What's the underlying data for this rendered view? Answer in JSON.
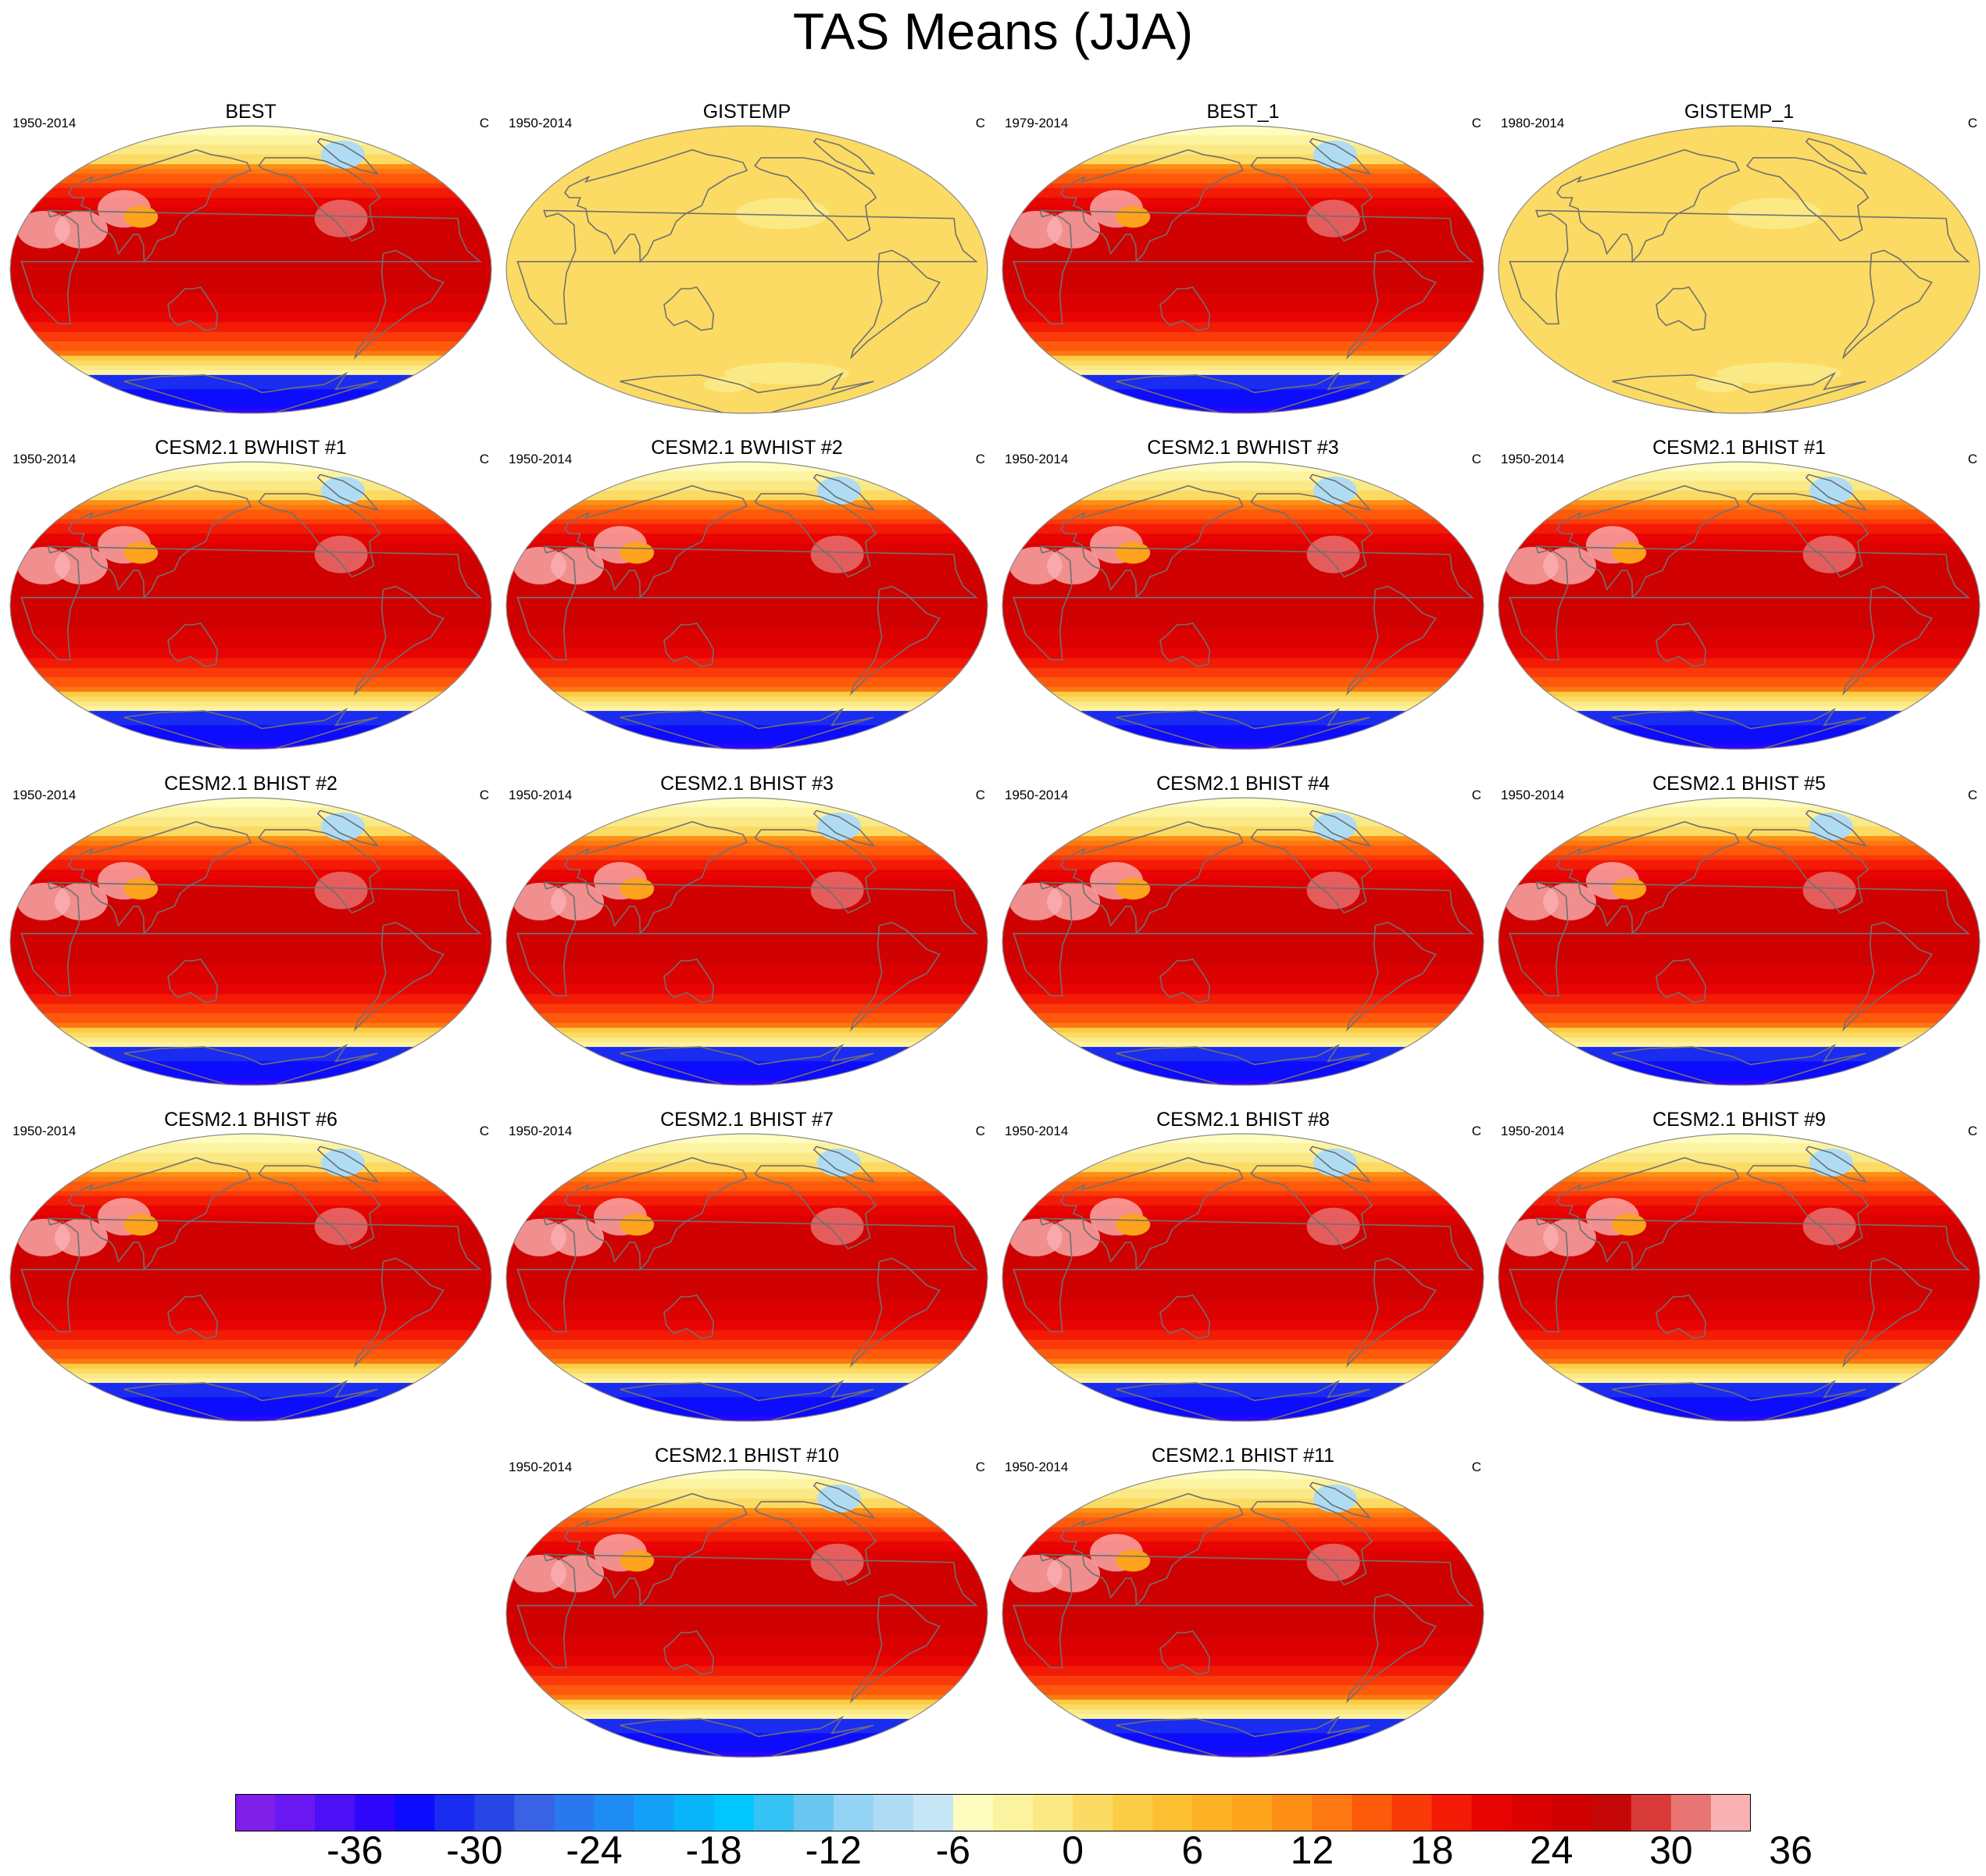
{
  "title": "TAS Means (JJA)",
  "units": "C",
  "chart_data": {
    "type": "map-panels",
    "variable": "TAS",
    "season": "JJA",
    "units": "C",
    "panels": [
      {
        "title": "BEST",
        "years": "1950-2014",
        "units": "C",
        "field": "full"
      },
      {
        "title": "GISTEMP",
        "years": "1950-2014",
        "units": "C",
        "field": "anomaly-near-zero"
      },
      {
        "title": "BEST_1",
        "years": "1979-2014",
        "units": "C",
        "field": "full"
      },
      {
        "title": "GISTEMP_1",
        "years": "1980-2014",
        "units": "C",
        "field": "anomaly-near-zero"
      },
      {
        "title": "CESM2.1 BWHIST #1",
        "years": "1950-2014",
        "units": "C",
        "field": "full"
      },
      {
        "title": "CESM2.1 BWHIST #2",
        "years": "1950-2014",
        "units": "C",
        "field": "full"
      },
      {
        "title": "CESM2.1 BWHIST #3",
        "years": "1950-2014",
        "units": "C",
        "field": "full"
      },
      {
        "title": "CESM2.1 BHIST #1",
        "years": "1950-2014",
        "units": "C",
        "field": "full"
      },
      {
        "title": "CESM2.1 BHIST #2",
        "years": "1950-2014",
        "units": "C",
        "field": "full"
      },
      {
        "title": "CESM2.1 BHIST #3",
        "years": "1950-2014",
        "units": "C",
        "field": "full"
      },
      {
        "title": "CESM2.1 BHIST #4",
        "years": "1950-2014",
        "units": "C",
        "field": "full"
      },
      {
        "title": "CESM2.1 BHIST #5",
        "years": "1950-2014",
        "units": "C",
        "field": "full"
      },
      {
        "title": "CESM2.1 BHIST #6",
        "years": "1950-2014",
        "units": "C",
        "field": "full"
      },
      {
        "title": "CESM2.1 BHIST #7",
        "years": "1950-2014",
        "units": "C",
        "field": "full"
      },
      {
        "title": "CESM2.1 BHIST #8",
        "years": "1950-2014",
        "units": "C",
        "field": "full"
      },
      {
        "title": "CESM2.1 BHIST #9",
        "years": "1950-2014",
        "units": "C",
        "field": "full"
      },
      {
        "title": "CESM2.1 BHIST #10",
        "years": "1950-2014",
        "units": "C",
        "field": "full"
      },
      {
        "title": "CESM2.1 BHIST #11",
        "years": "1950-2014",
        "units": "C",
        "field": "full"
      }
    ],
    "colorbar": {
      "min": -42,
      "max": 42,
      "interval": 2,
      "tick_labels": [
        "-36",
        "-30",
        "-24",
        "-18",
        "-12",
        "-6",
        "0",
        "6",
        "12",
        "18",
        "24",
        "30",
        "36"
      ],
      "colors": [
        "#7f1fe8",
        "#6a18f2",
        "#4d0ff6",
        "#2e06fb",
        "#0d0cff",
        "#1a2cf0",
        "#2846e6",
        "#3962e4",
        "#2a78ee",
        "#1e8cf2",
        "#14a0f8",
        "#0ab4fb",
        "#02c6ff",
        "#35c2f5",
        "#68c6f0",
        "#93d3f3",
        "#afdcf4",
        "#c6e6f6",
        "#fefdbf",
        "#fcf3a0",
        "#fbe985",
        "#fbdb63",
        "#fbcd47",
        "#fdbf32",
        "#fdb124",
        "#fda31c",
        "#fd8f16",
        "#fd7812",
        "#fd5a0c",
        "#fa3a08",
        "#f31a06",
        "#e80402",
        "#dc0201",
        "#d00101",
        "#c60707",
        "#d83a3a",
        "#e87474",
        "#f9b1b1"
      ]
    }
  }
}
